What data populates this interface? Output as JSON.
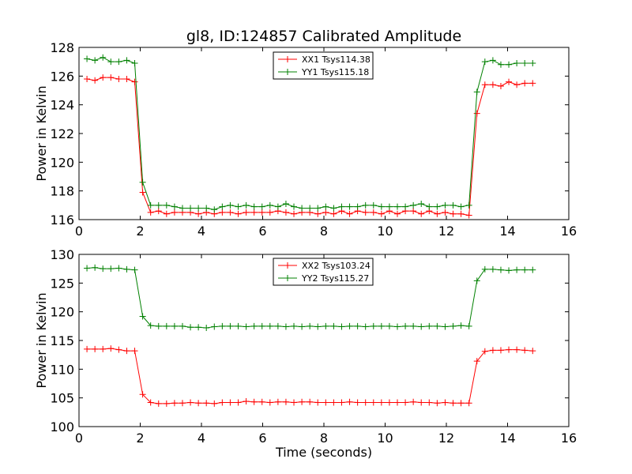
{
  "figure": {
    "title": "gl8, ID:124857 Calibrated Amplitude"
  },
  "chart_data": [
    {
      "type": "line",
      "title": "gl8, ID:124857 Calibrated Amplitude",
      "xlabel": "",
      "ylabel": "Power in Kelvin",
      "xlim": [
        0,
        16
      ],
      "ylim": [
        116,
        128
      ],
      "xticks": [
        "0",
        "2",
        "4",
        "6",
        "8",
        "10",
        "12",
        "14",
        "16"
      ],
      "yticks": [
        "116",
        "118",
        "120",
        "122",
        "124",
        "126",
        "128"
      ],
      "legend_position": "top-center",
      "grid": false,
      "x": [
        0.26,
        0.52,
        0.78,
        1.04,
        1.3,
        1.56,
        1.82,
        2.08,
        2.34,
        2.6,
        2.86,
        3.12,
        3.38,
        3.64,
        3.9,
        4.16,
        4.42,
        4.68,
        4.94,
        5.2,
        5.46,
        5.72,
        5.98,
        6.24,
        6.5,
        6.76,
        7.02,
        7.28,
        7.54,
        7.8,
        8.06,
        8.32,
        8.58,
        8.84,
        9.1,
        9.36,
        9.62,
        9.88,
        10.14,
        10.4,
        10.66,
        10.92,
        11.18,
        11.44,
        11.7,
        11.96,
        12.22,
        12.48,
        12.74,
        13.0,
        13.26,
        13.52,
        13.78,
        14.04,
        14.3,
        14.56,
        14.82
      ],
      "series": [
        {
          "name": "XX1 Tsys114.38",
          "color": "#ff0000",
          "values": [
            125.8,
            125.7,
            125.9,
            125.9,
            125.8,
            125.8,
            125.6,
            117.9,
            116.5,
            116.6,
            116.4,
            116.5,
            116.5,
            116.5,
            116.4,
            116.5,
            116.4,
            116.5,
            116.5,
            116.4,
            116.5,
            116.5,
            116.5,
            116.5,
            116.6,
            116.5,
            116.4,
            116.5,
            116.5,
            116.4,
            116.5,
            116.4,
            116.6,
            116.4,
            116.6,
            116.5,
            116.5,
            116.4,
            116.6,
            116.4,
            116.6,
            116.6,
            116.4,
            116.6,
            116.4,
            116.5,
            116.4,
            116.4,
            116.3,
            123.4,
            125.4,
            125.4,
            125.3,
            125.6,
            125.4,
            125.5,
            125.5
          ]
        },
        {
          "name": "YY1 Tsys115.18",
          "color": "#008000",
          "values": [
            127.2,
            127.1,
            127.3,
            127.0,
            127.0,
            127.1,
            126.9,
            118.6,
            117.0,
            117.0,
            117.0,
            116.9,
            116.8,
            116.8,
            116.8,
            116.8,
            116.7,
            116.9,
            117.0,
            116.9,
            117.0,
            116.9,
            116.9,
            117.0,
            116.9,
            117.1,
            116.9,
            116.8,
            116.8,
            116.8,
            116.9,
            116.8,
            116.9,
            116.9,
            116.9,
            117.0,
            117.0,
            116.9,
            116.9,
            116.9,
            116.9,
            117.0,
            117.1,
            116.9,
            116.9,
            117.0,
            117.0,
            116.9,
            117.0,
            124.9,
            127.0,
            127.1,
            126.8,
            126.8,
            126.9,
            126.9,
            126.9
          ]
        }
      ]
    },
    {
      "type": "line",
      "title": "",
      "xlabel": "Time (seconds)",
      "ylabel": "Power in Kelvin",
      "xlim": [
        0,
        16
      ],
      "ylim": [
        100,
        130
      ],
      "xticks": [
        "0",
        "2",
        "4",
        "6",
        "8",
        "10",
        "12",
        "14",
        "16"
      ],
      "yticks": [
        "100",
        "105",
        "110",
        "115",
        "120",
        "125",
        "130"
      ],
      "legend_position": "top-center",
      "grid": false,
      "x": [
        0.26,
        0.52,
        0.78,
        1.04,
        1.3,
        1.56,
        1.82,
        2.08,
        2.34,
        2.6,
        2.86,
        3.12,
        3.38,
        3.64,
        3.9,
        4.16,
        4.42,
        4.68,
        4.94,
        5.2,
        5.46,
        5.72,
        5.98,
        6.24,
        6.5,
        6.76,
        7.02,
        7.28,
        7.54,
        7.8,
        8.06,
        8.32,
        8.58,
        8.84,
        9.1,
        9.36,
        9.62,
        9.88,
        10.14,
        10.4,
        10.66,
        10.92,
        11.18,
        11.44,
        11.7,
        11.96,
        12.22,
        12.48,
        12.74,
        13.0,
        13.26,
        13.52,
        13.78,
        14.04,
        14.3,
        14.56,
        14.82
      ],
      "series": [
        {
          "name": "XX2 Tsys103.24",
          "color": "#ff0000",
          "values": [
            113.5,
            113.5,
            113.5,
            113.6,
            113.4,
            113.2,
            113.2,
            105.6,
            104.2,
            104.0,
            104.0,
            104.1,
            104.1,
            104.2,
            104.1,
            104.1,
            104.0,
            104.2,
            104.2,
            104.2,
            104.4,
            104.3,
            104.3,
            104.2,
            104.3,
            104.3,
            104.2,
            104.3,
            104.3,
            104.2,
            104.2,
            104.2,
            104.2,
            104.3,
            104.2,
            104.2,
            104.2,
            104.2,
            104.2,
            104.2,
            104.2,
            104.3,
            104.2,
            104.2,
            104.1,
            104.2,
            104.1,
            104.1,
            104.1,
            111.4,
            113.1,
            113.3,
            113.3,
            113.4,
            113.4,
            113.3,
            113.2
          ]
        },
        {
          "name": "YY2 Tsys115.27",
          "color": "#008000",
          "values": [
            127.6,
            127.7,
            127.5,
            127.5,
            127.6,
            127.4,
            127.3,
            119.2,
            117.6,
            117.5,
            117.5,
            117.5,
            117.5,
            117.3,
            117.3,
            117.2,
            117.4,
            117.5,
            117.5,
            117.5,
            117.4,
            117.5,
            117.5,
            117.5,
            117.5,
            117.4,
            117.5,
            117.4,
            117.5,
            117.4,
            117.5,
            117.5,
            117.4,
            117.5,
            117.5,
            117.4,
            117.5,
            117.5,
            117.5,
            117.4,
            117.5,
            117.5,
            117.4,
            117.5,
            117.5,
            117.4,
            117.5,
            117.6,
            117.5,
            125.4,
            127.4,
            127.4,
            127.3,
            127.2,
            127.3,
            127.3,
            127.3
          ]
        }
      ]
    }
  ]
}
